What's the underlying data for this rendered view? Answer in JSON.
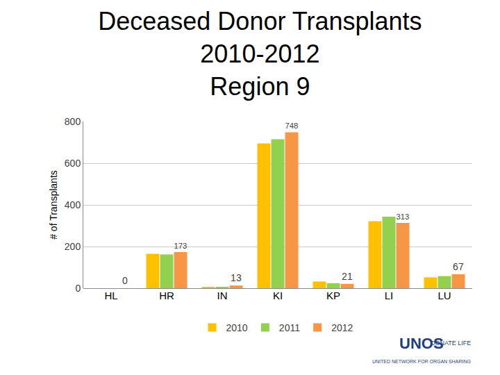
{
  "chart_data": {
    "type": "bar",
    "title": "Deceased Donor Transplants\n2010-2012\nRegion 9",
    "y_label": "# of Transplants",
    "categories": [
      "HL",
      "HR",
      "IN",
      "KI",
      "KP",
      "LI",
      "LU"
    ],
    "series": [
      {
        "name": "2010",
        "color": "#FFC000",
        "values": [
          0,
          165,
          5,
          695,
          32,
          322,
          52
        ]
      },
      {
        "name": "2011",
        "color": "#92D050",
        "values": [
          0,
          162,
          6,
          715,
          24,
          343,
          58
        ]
      },
      {
        "name": "2012",
        "color": "#F79646",
        "values": [
          0,
          173,
          13,
          748,
          21,
          313,
          67
        ],
        "data_labels": true
      }
    ],
    "ylim": [
      0,
      800
    ],
    "yticks": [
      0,
      200,
      400,
      600,
      800
    ],
    "grid": true,
    "legend": "bottom",
    "annotations": [
      "UNOS",
      "DONATE LIFE",
      "UNITED NETWORK FOR ORGAN SHARING"
    ]
  }
}
